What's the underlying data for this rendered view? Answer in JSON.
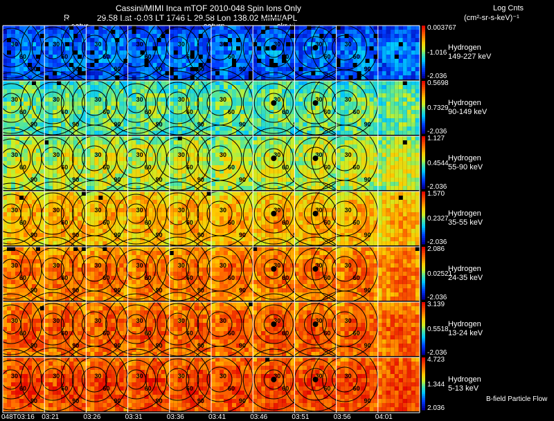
{
  "header": {
    "line1": "Cassini/MIMI Inca mTOF  2010-048   Spin   Ions Only",
    "line2_r": "R",
    "line2_rest": "29.58 Lat -0.03 LT 1746 L         29.58 Lon       138.02  MIMI/APL",
    "tag_satur": "satur",
    "tag_saturn": "saturn",
    "tag_skr": "skr-vi",
    "units_title": "Log Cnts",
    "units": "(cm²-sr-s-keV)⁻¹"
  },
  "bands": [
    {
      "species": "Hydrogen",
      "energy": "149-227 keV",
      "max": "0.003767",
      "mid": "-1.016",
      "min": "-2.036"
    },
    {
      "species": "Hydrogen",
      "energy": "90-149 keV",
      "max": "0.5698",
      "mid": "0.7329",
      "min": "-2.036"
    },
    {
      "species": "Hydrogen",
      "energy": "55-90 keV",
      "max": "1.127",
      "mid": "0.4544",
      "min": "-2.036"
    },
    {
      "species": "Hydrogen",
      "energy": "35-55 keV",
      "max": "1.570",
      "mid": "0.2327",
      "min": "-2.036"
    },
    {
      "species": "Hydrogen",
      "energy": "24-35 keV",
      "max": "2.086",
      "mid": "0.02521",
      "min": "-2.036"
    },
    {
      "species": "Hydrogen",
      "energy": "13-24 keV",
      "max": "3.139",
      "mid": "0.5518",
      "min": "-2.036"
    },
    {
      "species": "Hydrogen",
      "energy": "5-13 keV",
      "max": "4.723",
      "mid": "1.344",
      "min": "2.036"
    }
  ],
  "footer_note": "B-field Particle Flow",
  "x_ticks": [
    "048T03:16",
    "03:21",
    "03:26",
    "03:31",
    "03:36",
    "03:41",
    "03:46",
    "03:51",
    "03:56",
    "04:01"
  ],
  "contour_labels": [
    "30",
    "60",
    "90"
  ],
  "colors": {
    "background": "#000000",
    "grid_line": "#ffffff",
    "contour": "#000000"
  },
  "chart_data": {
    "type": "heatmap",
    "title": "Cassini/MIMI Inca mTOF  2010-048   Spin   Ions Only",
    "rows": [
      "149-227 keV",
      "90-149 keV",
      "55-90 keV",
      "35-55 keV",
      "24-35 keV",
      "13-24 keV",
      "5-13 keV"
    ],
    "columns": [
      "048T03:16",
      "03:21",
      "03:26",
      "03:31",
      "03:36",
      "03:41",
      "03:46",
      "03:51",
      "03:56",
      "04:01"
    ],
    "row_level": [
      0.12,
      0.38,
      0.48,
      0.62,
      0.72,
      0.76,
      0.8
    ],
    "colorbar": "Log Cnts (cm²-sr-s-keV)⁻¹",
    "grid": true
  }
}
